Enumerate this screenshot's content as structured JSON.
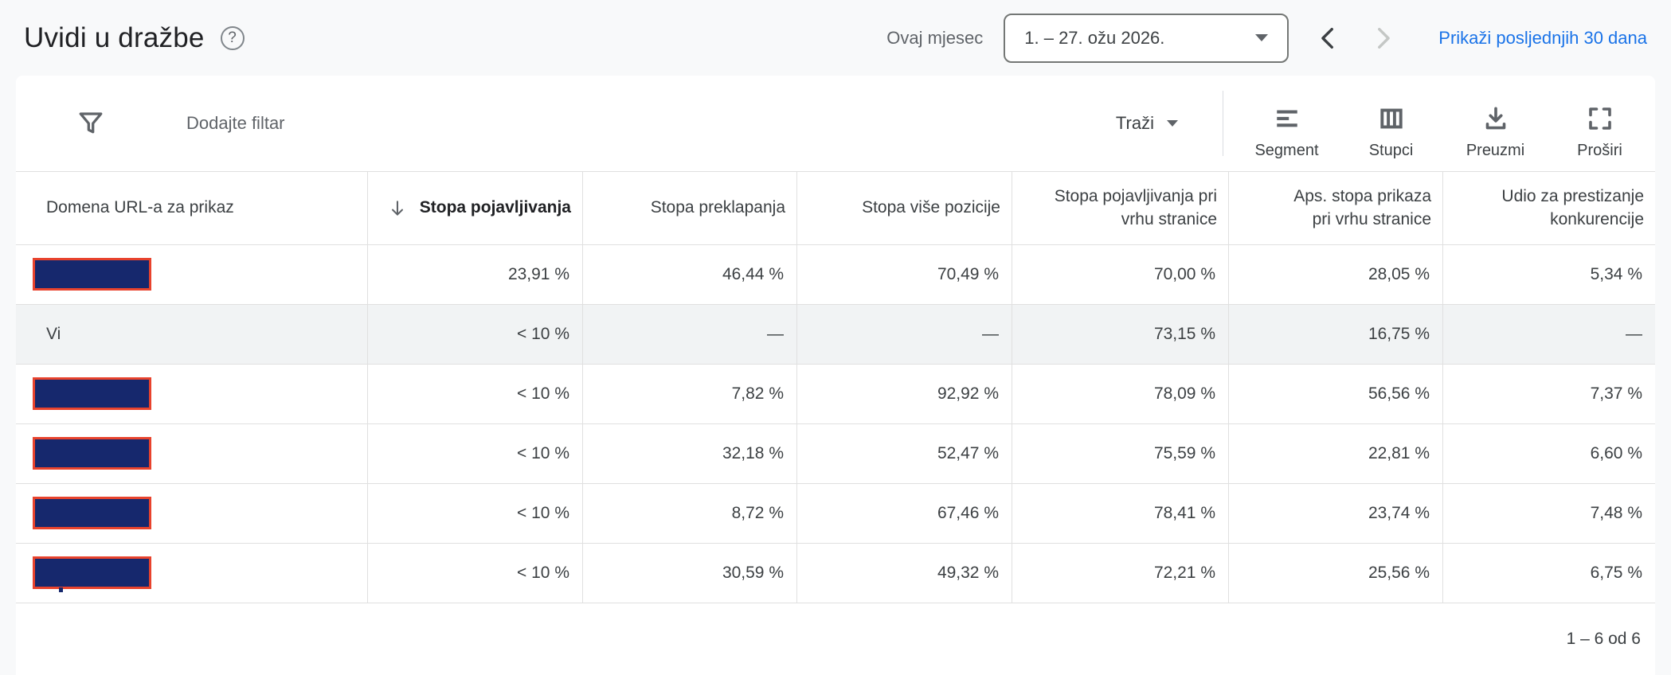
{
  "header": {
    "title": "Uvidi u dražbe",
    "period_label": "Ovaj mjesec",
    "date_range": "1. – 27. ožu 2026.",
    "show_last_30": "Prikaži posljednjih 30 dana"
  },
  "toolbar": {
    "add_filter": "Dodajte filtar",
    "search": "Traži",
    "segment": "Segment",
    "columns": "Stupci",
    "download": "Preuzmi",
    "expand": "Proširi"
  },
  "icons": {
    "help": "question-circle",
    "date_caret": "triangle-down",
    "prev": "chevron-left",
    "next": "chevron-right-disabled",
    "filter": "funnel",
    "search_caret": "triangle-down",
    "segment": "segment-lines",
    "columns": "columns-grid",
    "download": "download-arrow-tray",
    "expand": "expand-corners",
    "sort": "arrow-down"
  },
  "table": {
    "columns": [
      {
        "label": "Domena URL-a za prikaz",
        "align": "left",
        "sorted": false
      },
      {
        "label": "Stopa pojavljivanja",
        "align": "right",
        "sorted": true,
        "sort_direction": "desc"
      },
      {
        "label": "Stopa preklapanja",
        "align": "right",
        "sorted": false
      },
      {
        "label": "Stopa više pozicije",
        "align": "right",
        "sorted": false
      },
      {
        "label": "Stopa pojavljivanja pri vrhu stranice",
        "align": "right",
        "sorted": false
      },
      {
        "label": "Aps. stopa prikaza pri vrhu stranice",
        "align": "right",
        "sorted": false
      },
      {
        "label": "Udio za prestizanje konkurencije",
        "align": "right",
        "sorted": false
      }
    ],
    "rows": [
      {
        "domain": "",
        "redacted": true,
        "highlight": false,
        "values": [
          "23,91 %",
          "46,44 %",
          "70,49 %",
          "70,00 %",
          "28,05 %",
          "5,34 %"
        ]
      },
      {
        "domain": "Vi",
        "redacted": false,
        "highlight": true,
        "values": [
          "< 10 %",
          "—",
          "—",
          "73,15 %",
          "16,75 %",
          "—"
        ]
      },
      {
        "domain": "",
        "redacted": true,
        "highlight": false,
        "values": [
          "< 10 %",
          "7,82 %",
          "92,92 %",
          "78,09 %",
          "56,56 %",
          "7,37 %"
        ]
      },
      {
        "domain": "",
        "redacted": true,
        "highlight": false,
        "values": [
          "< 10 %",
          "32,18 %",
          "52,47 %",
          "75,59 %",
          "22,81 %",
          "6,60 %"
        ]
      },
      {
        "domain": "",
        "redacted": true,
        "highlight": false,
        "values": [
          "< 10 %",
          "8,72 %",
          "67,46 %",
          "78,41 %",
          "23,74 %",
          "7,48 %"
        ]
      },
      {
        "domain": "",
        "redacted": true,
        "highlight": false,
        "values": [
          "< 10 %",
          "30,59 %",
          "49,32 %",
          "72,21 %",
          "25,56 %",
          "6,75 %"
        ]
      }
    ],
    "pagination": "1 – 6 od 6"
  },
  "colors": {
    "link": "#1a73e8",
    "highlight_row": "#f1f3f4",
    "redaction_fill": "#16286d",
    "redaction_border": "#e8432d"
  }
}
